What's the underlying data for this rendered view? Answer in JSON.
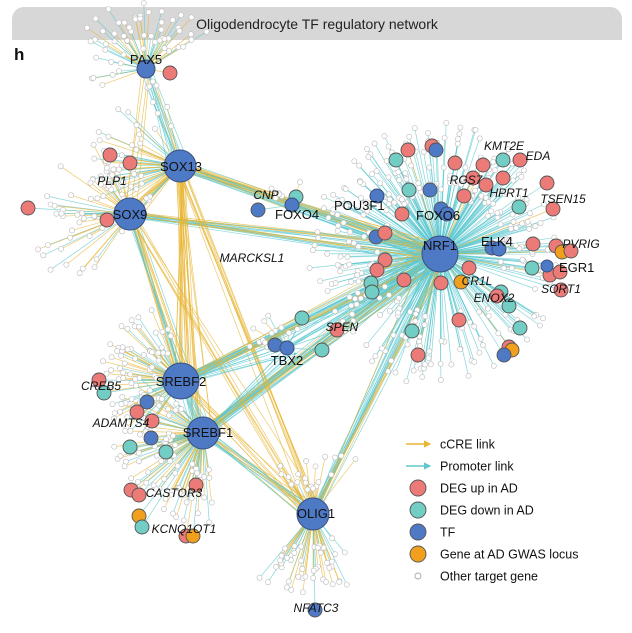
{
  "header": {
    "title": "Oligodendrocyte TF regulatory network",
    "panel_letter": "h"
  },
  "colors": {
    "cCRE": "#e8b634",
    "promoter": "#5ec8d0",
    "deg_up": "#ec7b78",
    "deg_down": "#72cdc4",
    "tf": "#4e79c4",
    "gwas": "#f0a01c",
    "other": "#ffffff"
  },
  "tfs": [
    {
      "id": "PAX5",
      "label": "PAX5"
    },
    {
      "id": "SOX13",
      "label": "SOX13"
    },
    {
      "id": "SOX9",
      "label": "SOX9"
    },
    {
      "id": "FOXO4",
      "label": "FOXO4"
    },
    {
      "id": "POU3F1",
      "label": "POU3F1"
    },
    {
      "id": "FOXO6",
      "label": "FOXO6"
    },
    {
      "id": "NRF1",
      "label": "NRF1"
    },
    {
      "id": "ELK4",
      "label": "ELK4"
    },
    {
      "id": "EGR1",
      "label": "EGR1"
    },
    {
      "id": "TBX2",
      "label": "TBX2"
    },
    {
      "id": "SREBF2",
      "label": "SREBF2"
    },
    {
      "id": "SREBF1",
      "label": "SREBF1"
    },
    {
      "id": "OLIG1",
      "label": "OLIG1"
    }
  ],
  "genes": [
    {
      "label": "PLP1"
    },
    {
      "label": "CNP"
    },
    {
      "label": "MARCKSL1"
    },
    {
      "label": "KMT2E"
    },
    {
      "label": "EDA"
    },
    {
      "label": "RGS7"
    },
    {
      "label": "HPRT1"
    },
    {
      "label": "TSEN15"
    },
    {
      "label": "PVRIG"
    },
    {
      "label": "CR1L"
    },
    {
      "label": "SORT1"
    },
    {
      "label": "ENOX2"
    },
    {
      "label": "SPEN"
    },
    {
      "label": "CREB5"
    },
    {
      "label": "ADAMTS4"
    },
    {
      "label": "CASTOR3"
    },
    {
      "label": "KCNQ1OT1"
    },
    {
      "label": "NFATC3"
    }
  ],
  "legend": {
    "items": [
      {
        "type": "line",
        "key": "cCRE",
        "label": "cCRE link"
      },
      {
        "type": "line",
        "key": "promoter",
        "label": "Promoter link"
      },
      {
        "type": "dot",
        "key": "deg_up",
        "label": "DEG up in AD"
      },
      {
        "type": "dot",
        "key": "deg_down",
        "label": "DEG down in AD"
      },
      {
        "type": "dot",
        "key": "tf",
        "label": "TF"
      },
      {
        "type": "dot",
        "key": "gwas",
        "label": "Gene at AD GWAS locus"
      },
      {
        "type": "dot",
        "key": "other",
        "label": "Other target gene"
      }
    ]
  }
}
